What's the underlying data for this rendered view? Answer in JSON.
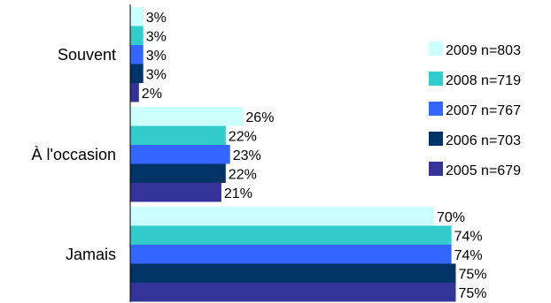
{
  "chart_data": {
    "type": "bar",
    "orientation": "horizontal",
    "categories": [
      "Souvent",
      "À l'occasion",
      "Jamais"
    ],
    "series": [
      {
        "name": "2009 n=803",
        "color": "#ccffff",
        "values": [
          3,
          26,
          70
        ],
        "labels": [
          "3%",
          "26%",
          "70%"
        ]
      },
      {
        "name": "2008 n=719",
        "color": "#33cccc",
        "values": [
          3,
          22,
          74
        ],
        "labels": [
          "3%",
          "22%",
          "74%"
        ]
      },
      {
        "name": "2007 n=767",
        "color": "#3366ff",
        "values": [
          3,
          23,
          74
        ],
        "labels": [
          "3%",
          "23%",
          "74%"
        ]
      },
      {
        "name": "2006 n=703",
        "color": "#003366",
        "values": [
          3,
          22,
          75
        ],
        "labels": [
          "3%",
          "22%",
          "75%"
        ]
      },
      {
        "name": "2005 n=679",
        "color": "#333399",
        "values": [
          2,
          21,
          75
        ],
        "labels": [
          "2%",
          "21%",
          "75%"
        ]
      }
    ],
    "xlim": [
      0,
      100
    ],
    "grid": false,
    "legend_position": "right"
  }
}
